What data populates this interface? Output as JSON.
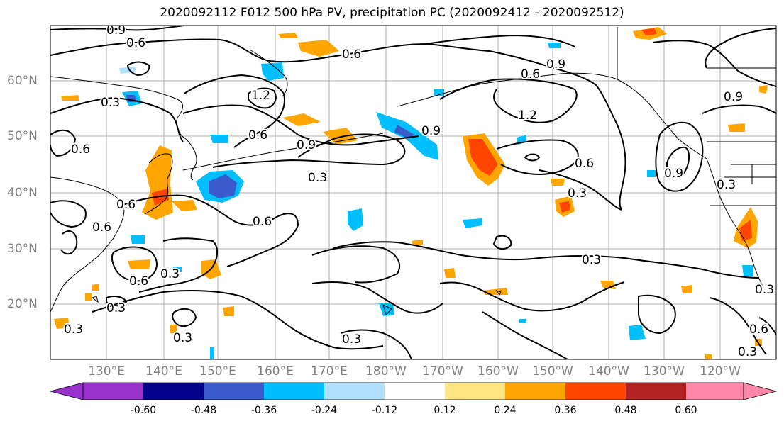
{
  "title": "2020092112 F012 500 hPa PV, precipitation PC (2020092412 - 2020092512)",
  "map": {
    "lat_labels": [
      "60°N",
      "50°N",
      "40°N",
      "30°N",
      "20°N"
    ],
    "lon_labels": [
      "130°E",
      "140°E",
      "150°E",
      "160°E",
      "170°E",
      "180°W",
      "170°W",
      "160°W",
      "150°W",
      "140°W",
      "130°W",
      "120°W"
    ],
    "contour_labels": [
      "0.9",
      "0.6",
      "0.6",
      "0.3",
      "1.2",
      "0.6",
      "0.9",
      "0.3",
      "0.6",
      "1.2",
      "0.9",
      "0.9",
      "0.6",
      "0.6",
      "0.3",
      "0.9",
      "0.9",
      "0.3",
      "0.6",
      "0.6",
      "0.6",
      "0.3",
      "0.6",
      "0.3",
      "0.3",
      "0.3",
      "0.3",
      "0.3",
      "0.3",
      "0.6",
      "0.3"
    ],
    "contour_color": "#000000",
    "grid": true
  },
  "colorbar": {
    "tick_labels": [
      "-0.60",
      "-0.48",
      "-0.36",
      "-0.24",
      "-0.12",
      "0.12",
      "0.24",
      "0.36",
      "0.48",
      "0.60"
    ],
    "colors": [
      "#9932cc",
      "#00008b",
      "#3a5bcc",
      "#00bfff",
      "#b0e2ff",
      "#ffffff",
      "#ffe680",
      "#ffa500",
      "#ff4500",
      "#b22222",
      "#ff88aa"
    ],
    "extend": "both"
  }
}
